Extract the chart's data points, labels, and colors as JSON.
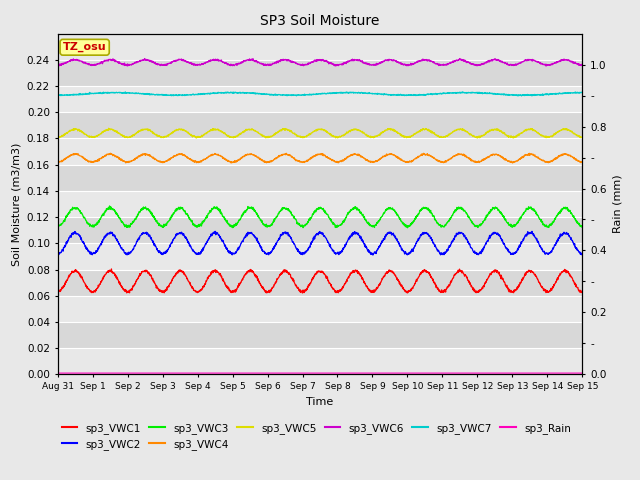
{
  "title": "SP3 Soil Moisture",
  "xlabel": "Time",
  "ylabel_left": "Soil Moisture (m3/m3)",
  "ylabel_right": "Rain (mm)",
  "ylim_left": [
    0.0,
    0.26
  ],
  "ylim_right": [
    0.0,
    1.1
  ],
  "yticks_left": [
    0.0,
    0.02,
    0.04,
    0.06,
    0.08,
    0.1,
    0.12,
    0.14,
    0.16,
    0.18,
    0.2,
    0.22,
    0.24
  ],
  "yticks_right_labeled": [
    0.0,
    0.2,
    0.4,
    0.6,
    0.8,
    1.0
  ],
  "yticks_right_minor": [
    0.1,
    0.3,
    0.5,
    0.7,
    0.9
  ],
  "xtick_labels": [
    "Aug 31",
    "Sep 1",
    "Sep 2",
    "Sep 3",
    "Sep 4",
    "Sep 5",
    "Sep 6",
    "Sep 7",
    "Sep 8",
    "Sep 9",
    "Sep 10",
    "Sep 11",
    "Sep 12",
    "Sep 13",
    "Sep 14",
    "Sep 15"
  ],
  "series": {
    "sp3_VWC1": {
      "color": "#ff0000",
      "base": 0.071,
      "amp": 0.008,
      "freq": 1.0,
      "noise": 0.0005
    },
    "sp3_VWC2": {
      "color": "#0000ff",
      "base": 0.1,
      "amp": 0.008,
      "freq": 1.0,
      "noise": 0.0005
    },
    "sp3_VWC3": {
      "color": "#00ee00",
      "base": 0.12,
      "amp": 0.007,
      "freq": 1.0,
      "noise": 0.0005
    },
    "sp3_VWC4": {
      "color": "#ff8800",
      "base": 0.165,
      "amp": 0.003,
      "freq": 1.0,
      "noise": 0.0003
    },
    "sp3_VWC5": {
      "color": "#dddd00",
      "base": 0.184,
      "amp": 0.003,
      "freq": 1.0,
      "noise": 0.0003
    },
    "sp3_VWC6": {
      "color": "#cc00cc",
      "base": 0.238,
      "amp": 0.002,
      "freq": 1.0,
      "noise": 0.0003
    },
    "sp3_VWC7": {
      "color": "#00cccc",
      "base": 0.214,
      "amp": 0.001,
      "freq": 0.3,
      "noise": 0.0002
    },
    "sp3_Rain": {
      "color": "#ff00bb",
      "base": 0.001,
      "amp": 0.0,
      "freq": 0.0,
      "noise": 0.0
    }
  },
  "legend": [
    {
      "label": "sp3_VWC1",
      "color": "#ff0000"
    },
    {
      "label": "sp3_VWC2",
      "color": "#0000ff"
    },
    {
      "label": "sp3_VWC3",
      "color": "#00ee00"
    },
    {
      "label": "sp3_VWC4",
      "color": "#ff8800"
    },
    {
      "label": "sp3_VWC5",
      "color": "#dddd00"
    },
    {
      "label": "sp3_VWC6",
      "color": "#cc00cc"
    },
    {
      "label": "sp3_VWC7",
      "color": "#00cccc"
    },
    {
      "label": "sp3_Rain",
      "color": "#ff00bb"
    }
  ],
  "tz_label": "TZ_osu",
  "tz_label_color": "#cc0000",
  "tz_box_color": "#ffff99",
  "background_color": "#e8e8e8",
  "band_light": "#ececec",
  "band_dark": "#dcdcdc",
  "grid_color": "#ffffff",
  "n_points": 2000,
  "duration_days": 15
}
